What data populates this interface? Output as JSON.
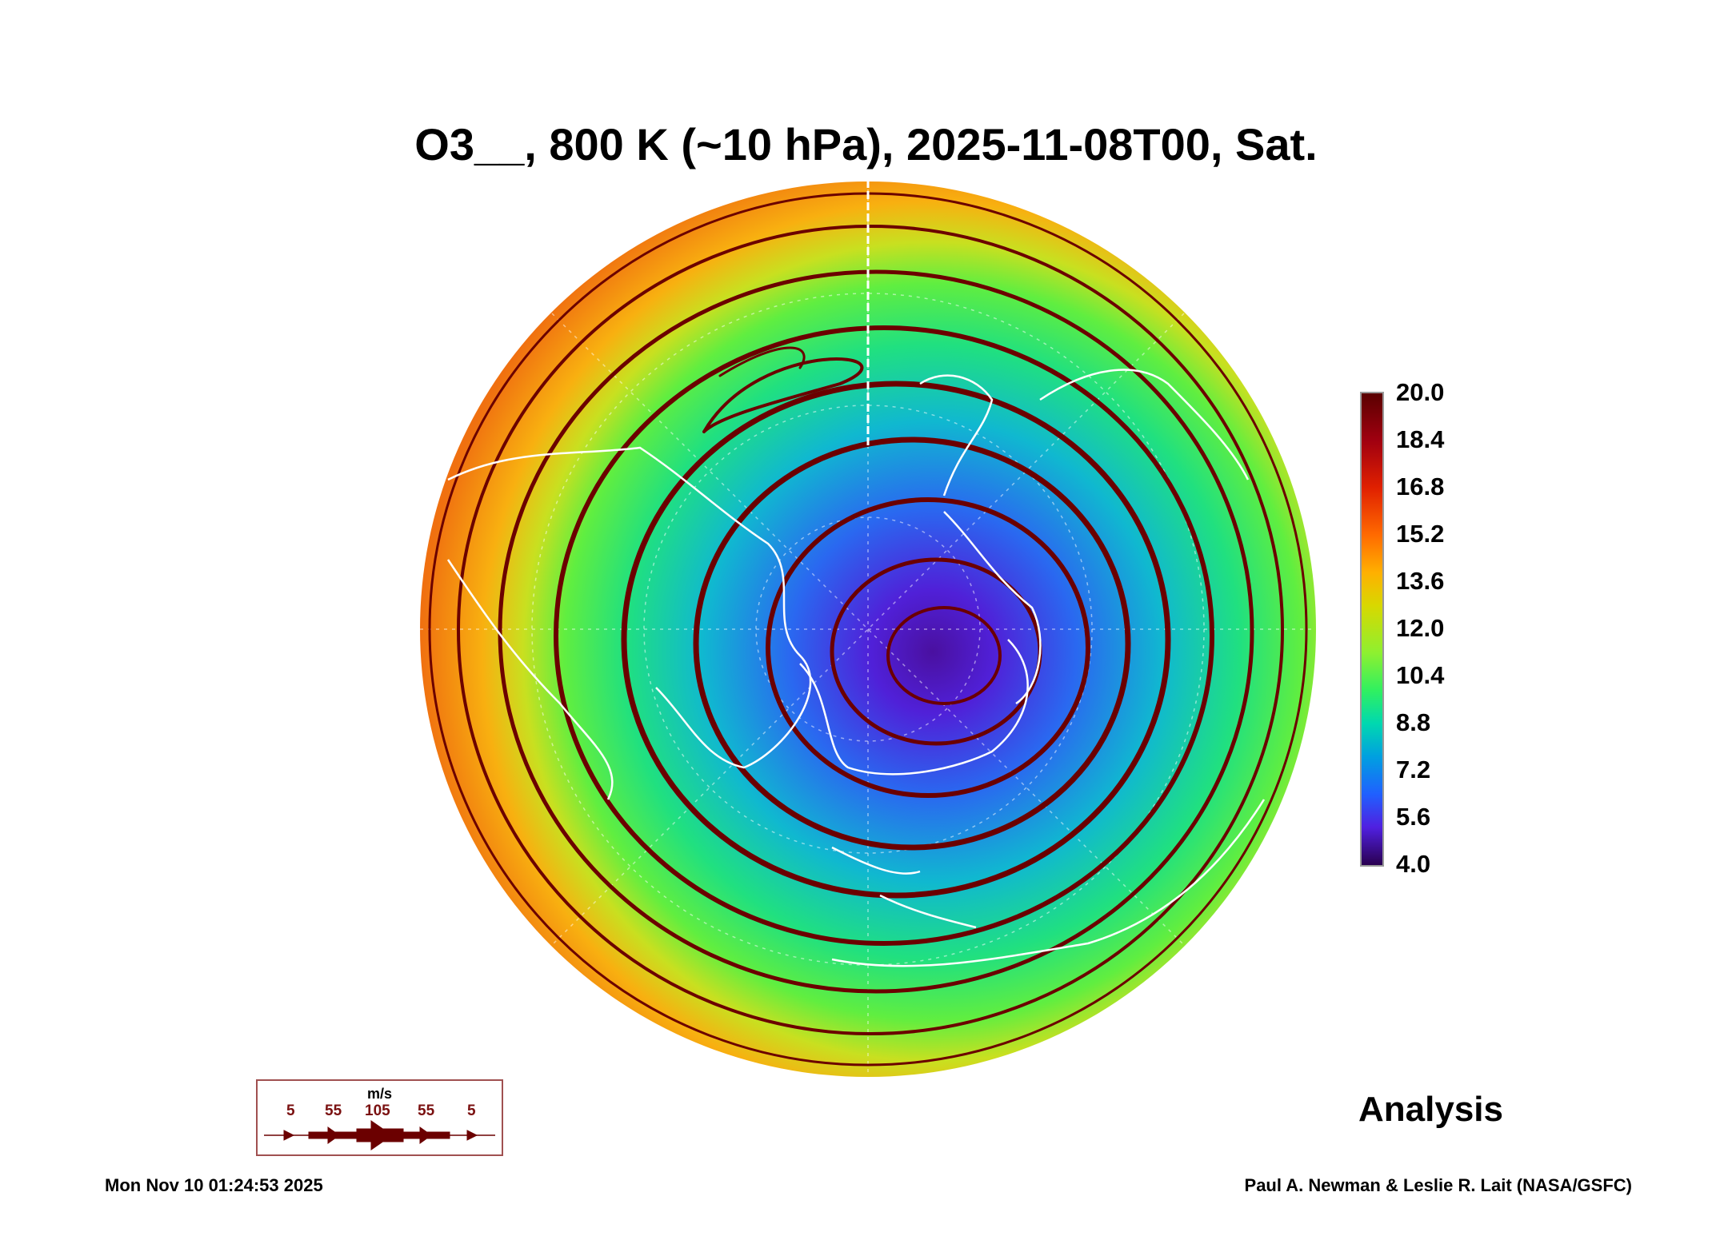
{
  "title": "O3__, 800 K (~10 hPa), 2025-11-08T00, Sat.",
  "colorbar": {
    "labels": [
      "20.0",
      "18.4",
      "16.8",
      "15.2",
      "13.6",
      "12.0",
      "10.4",
      "8.8",
      "7.2",
      "5.6",
      "4.0"
    ],
    "min": 4.0,
    "max": 20.0
  },
  "wind_legend": {
    "unit": "m/s",
    "values": [
      "5",
      "55",
      "105",
      "55",
      "5"
    ],
    "color": "#6b0000"
  },
  "analysis_label": "Analysis",
  "timestamp": "Mon Nov 10 01:24:53 2025",
  "credit": "Paul A. Newman & Leslie R. Lait (NASA/GSFC)"
}
